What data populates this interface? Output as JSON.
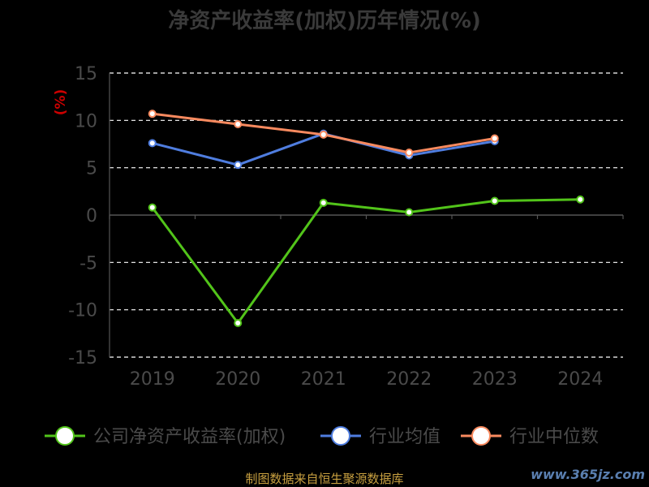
{
  "title": "净资产收益率(加权)历年情况(%)",
  "source": "制图数据来自恒生聚源数据库",
  "watermark": "www.365jz.com",
  "colors": {
    "company": "#52c41a",
    "industry_avg": "#4f7ddf",
    "industry_median": "#f98a5f",
    "grid": "#ffffff",
    "axis": "#555555"
  },
  "chart_data": {
    "type": "line",
    "title": "净资产收益率(加权)历年情况(%)",
    "ylabel": "(%)",
    "xlabel": "",
    "categories": [
      "2019",
      "2020",
      "2021",
      "2022",
      "2023",
      "2024"
    ],
    "ylim": [
      -15,
      15
    ],
    "yticks": [
      15,
      10,
      5,
      0,
      -5,
      -10,
      -15
    ],
    "grid": true,
    "legend_position": "bottom",
    "series": [
      {
        "name": "公司净资产收益率(加权)",
        "color": "#52c41a",
        "values": [
          0.8,
          -11.4,
          1.3,
          0.3,
          1.5,
          1.65
        ]
      },
      {
        "name": "行业均值",
        "color": "#4f7ddf",
        "values": [
          7.6,
          5.3,
          8.6,
          6.3,
          7.8,
          null
        ]
      },
      {
        "name": "行业中位数",
        "color": "#f98a5f",
        "values": [
          10.7,
          9.6,
          8.5,
          6.6,
          8.1,
          null
        ]
      }
    ]
  }
}
